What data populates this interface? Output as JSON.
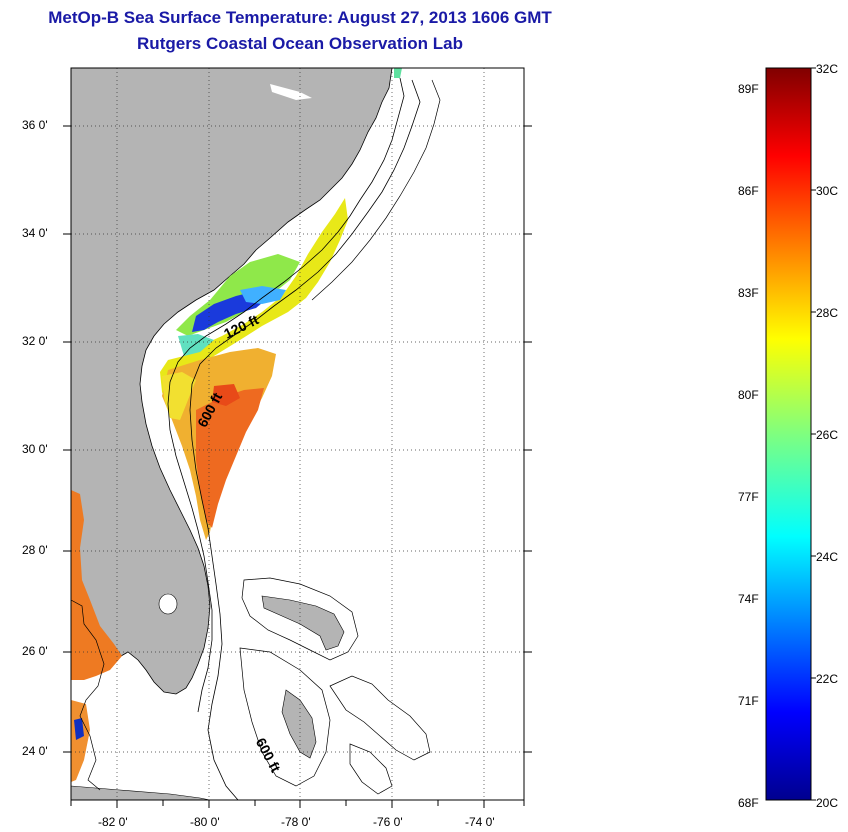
{
  "title": "MetOp-B Sea Surface Temperature:  August 27, 2013 1606 GMT",
  "subtitle": "Rutgers Coastal Ocean Observation Lab",
  "map": {
    "lon_range": [
      -83,
      -73
    ],
    "lat_range": [
      23,
      37
    ],
    "x_ticks": [
      "-82 0'",
      "-80 0'",
      "-78 0'",
      "-76 0'",
      "-74 0'"
    ],
    "y_ticks": [
      "36 0'",
      "34 0'",
      "32 0'",
      "30 0'",
      "28 0'",
      "26 0'",
      "24 0'"
    ],
    "grid": "dotted",
    "land_color": "#b4b4b4",
    "isobath_labels": [
      "120 ft",
      "600 ft",
      "600 ft"
    ]
  },
  "colorbar": {
    "celsius_labels": [
      "32C",
      "30C",
      "28C",
      "26C",
      "24C",
      "22C",
      "20C"
    ],
    "fahrenheit_labels": [
      "89F",
      "86F",
      "83F",
      "80F",
      "77F",
      "74F",
      "71F",
      "68F"
    ],
    "range_c": [
      20,
      32
    ],
    "colormap": "jet"
  }
}
